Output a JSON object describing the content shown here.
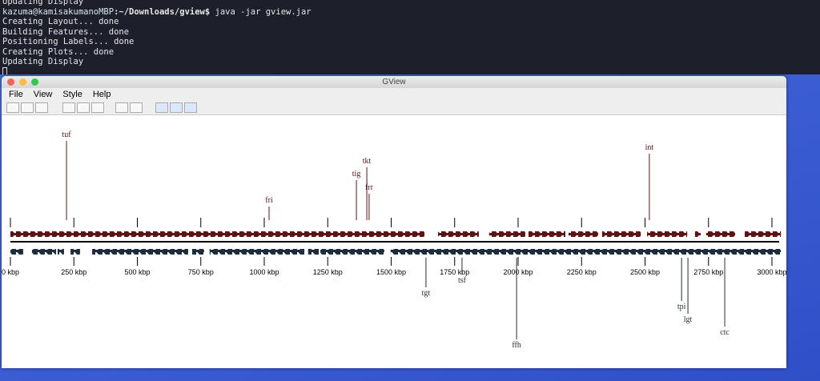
{
  "terminal": {
    "lines": [
      "Updating Display",
      "Creating Layout... done",
      "Building Features... done",
      "Positioning Labels... done",
      "Creating Plots... done",
      "Updating Display"
    ],
    "prompt_user": "kazuma@kamisakumanoMBP",
    "prompt_path": ":~/Downloads/gview$",
    "command": " java -jar gview.jar"
  },
  "window": {
    "title": "GView",
    "menu": [
      "File",
      "View",
      "Style",
      "Help"
    ]
  },
  "map": {
    "xlim": [
      0,
      3000
    ],
    "ticks": [
      {
        "value": 0,
        "label": "0 kbp"
      },
      {
        "value": 250,
        "label": "250 kbp"
      },
      {
        "value": 500,
        "label": "500 kbp"
      },
      {
        "value": 750,
        "label": "750 kbp"
      },
      {
        "value": 1000,
        "label": "1000 kbp"
      },
      {
        "value": 1250,
        "label": "1250 kbp"
      },
      {
        "value": 1500,
        "label": "1500 kbp"
      },
      {
        "value": 1750,
        "label": "1750 kbp"
      },
      {
        "value": 2000,
        "label": "2000 kbp"
      },
      {
        "value": 2250,
        "label": "2250 kbp"
      },
      {
        "value": 2500,
        "label": "2500 kbp"
      },
      {
        "value": 2750,
        "label": "2750 kbp"
      },
      {
        "value": 3000,
        "label": "3000 kbp"
      }
    ],
    "forward_color": "#5c1414",
    "reverse_color": "#1f2c3c",
    "forward": [
      [
        0,
        1631
      ],
      [
        1685,
        1845
      ],
      [
        1886,
        2028
      ],
      [
        2041,
        2186
      ],
      [
        2199,
        2315
      ],
      [
        2331,
        2483
      ],
      [
        2508,
        2666
      ],
      [
        2697,
        2719
      ],
      [
        2741,
        2855
      ],
      [
        2893,
        3035
      ]
    ],
    "reverse": [
      [
        0,
        50
      ],
      [
        85,
        180
      ],
      [
        186,
        211
      ],
      [
        237,
        274
      ],
      [
        322,
        700
      ],
      [
        716,
        763
      ],
      [
        785,
        1158
      ],
      [
        1173,
        1215
      ],
      [
        1221,
        1473
      ],
      [
        1498,
        3035
      ]
    ],
    "upper_genes": [
      {
        "name": "tuf",
        "position": 221
      },
      {
        "name": "fri",
        "position": 1019
      },
      {
        "name": "tig",
        "position": 1363
      },
      {
        "name": "tkt",
        "position": 1404
      },
      {
        "name": "frr",
        "position": 1413
      },
      {
        "name": "int",
        "position": 2517
      }
    ],
    "lower_genes": [
      {
        "name": "tgt",
        "position": 1637
      },
      {
        "name": "tsf",
        "position": 1779
      },
      {
        "name": "ffh",
        "position": 1994
      },
      {
        "name": "tpi",
        "position": 2644
      },
      {
        "name": "lgt",
        "position": 2669
      },
      {
        "name": "ctc",
        "position": 2814
      }
    ]
  }
}
